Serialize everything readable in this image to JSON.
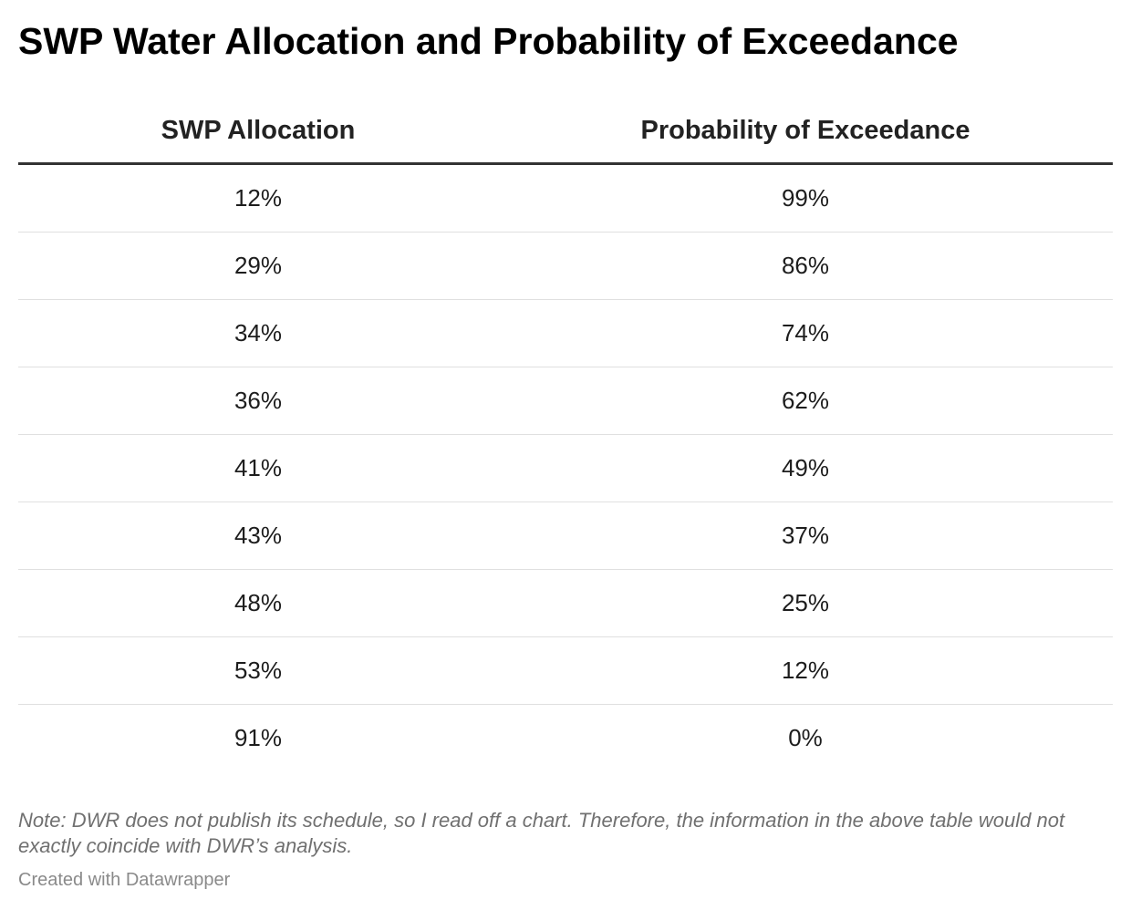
{
  "chart_data": {
    "type": "table",
    "title": "SWP Water Allocation and Probability of Exceedance",
    "columns": [
      "SWP Allocation",
      "Probability of Exceedance"
    ],
    "rows": [
      [
        "12%",
        "99%"
      ],
      [
        "29%",
        "86%"
      ],
      [
        "34%",
        "74%"
      ],
      [
        "36%",
        "62%"
      ],
      [
        "41%",
        "49%"
      ],
      [
        "43%",
        "37%"
      ],
      [
        "48%",
        "25%"
      ],
      [
        "53%",
        "12%"
      ],
      [
        "91%",
        "0%"
      ]
    ],
    "note": "Note: DWR does not publish its schedule, so I read off a chart. Therefore, the information in the above table would not exactly coincide with DWR’s analysis.",
    "credit": "Created with Datawrapper"
  }
}
